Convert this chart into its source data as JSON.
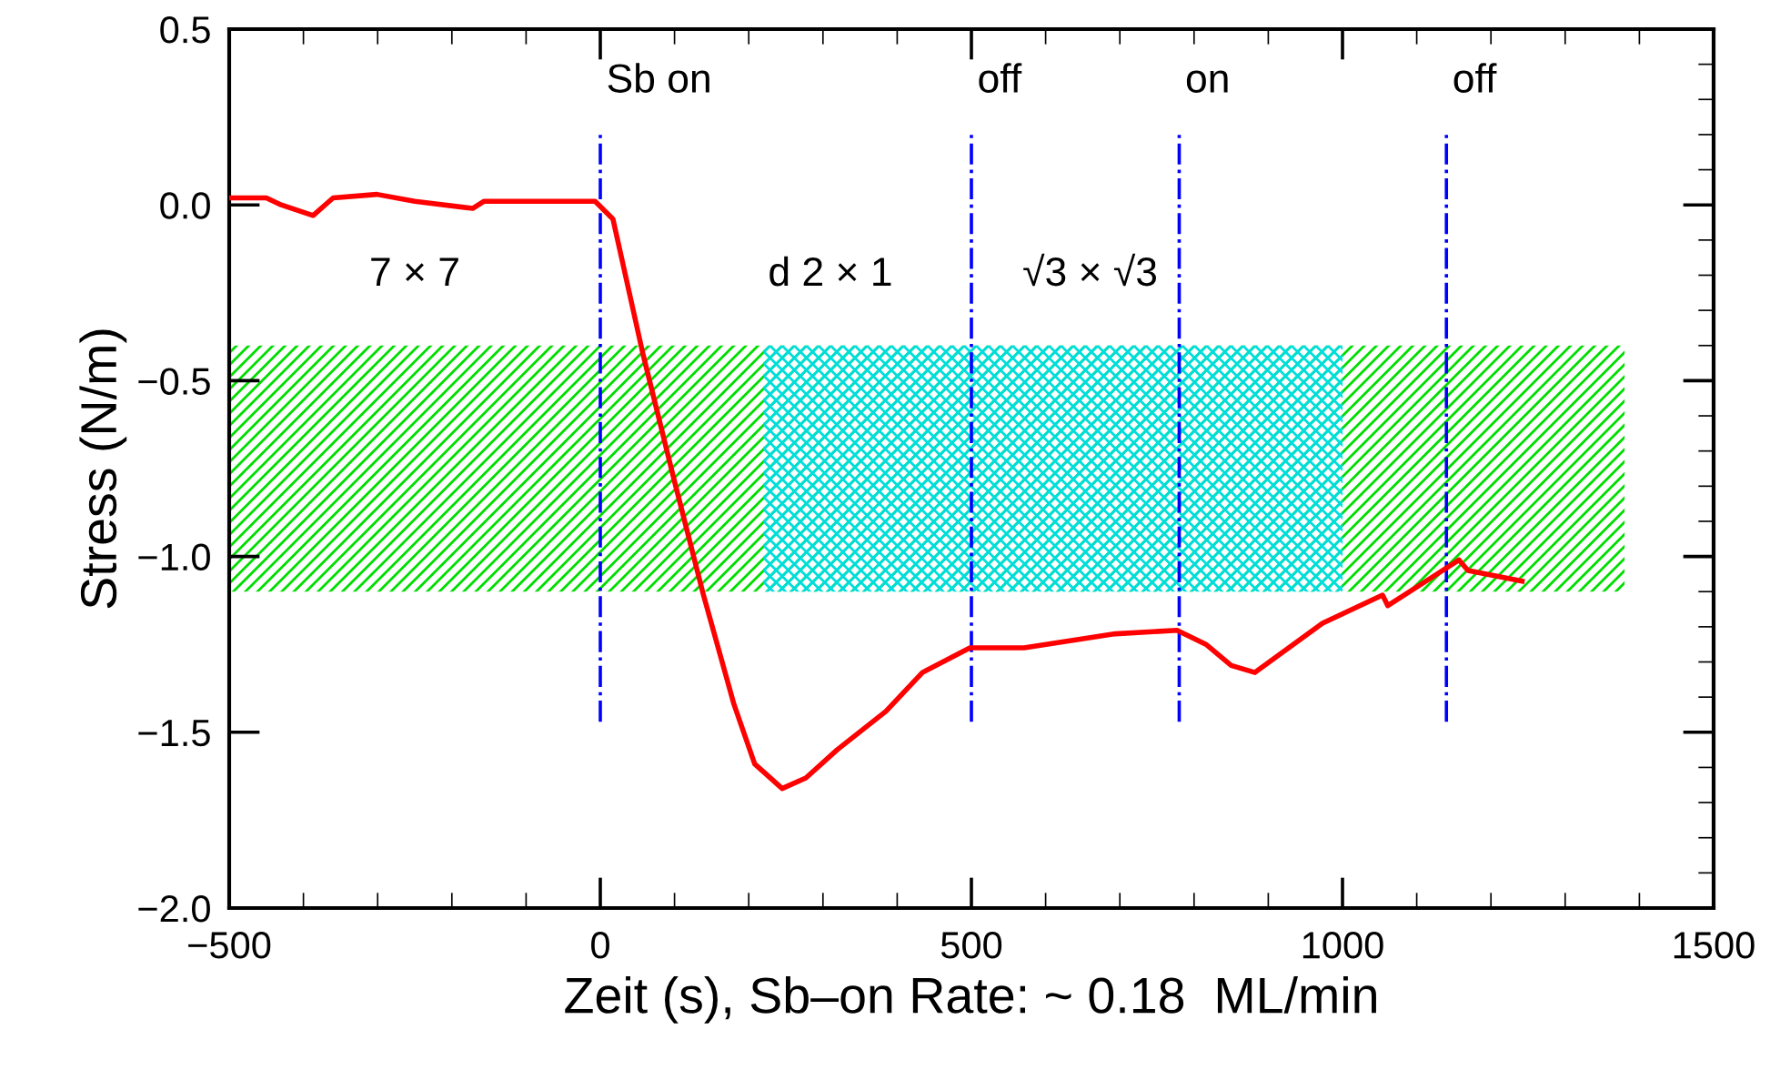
{
  "chart_data": {
    "type": "line",
    "xlabel": "Zeit (s), Sb–on Rate: ~ 0.18  ML/min",
    "ylabel": "Stress (N/m)",
    "xlim": [
      -500,
      1500
    ],
    "xticks": [
      {
        "value": -500,
        "label": "−500"
      },
      0,
      500,
      1000,
      1500
    ],
    "ylim": [
      -2.0,
      0.5
    ],
    "yticks": [
      {
        "value": -2.0,
        "label": "−2.0"
      },
      {
        "value": -1.5,
        "label": "−1.5"
      },
      {
        "value": -1.0,
        "label": "−1.0"
      },
      {
        "value": -0.5,
        "label": "−0.5"
      },
      {
        "value": 0.0,
        "label": "0.0"
      },
      {
        "value": 0.5,
        "label": "0.5"
      }
    ],
    "grid": false,
    "legend": false,
    "line_style": "solid",
    "marker": "none",
    "series": [
      {
        "color": "#ff0000",
        "x": [
          -497,
          -450,
          -430,
          -387,
          -360,
          -301,
          -250,
          -172,
          -157,
          -100,
          -7,
          17,
          57,
          98,
          139,
          180,
          208,
          245,
          277,
          319,
          385,
          434,
          498,
          571,
          694,
          777,
          816,
          850,
          882,
          973,
          1054,
          1061,
          1120,
          1157,
          1169,
          1242
        ],
        "values": [
          0.02,
          0.02,
          0.0,
          -0.03,
          0.02,
          0.03,
          0.01,
          -0.01,
          0.01,
          0.01,
          0.01,
          -0.04,
          -0.42,
          -0.77,
          -1.11,
          -1.42,
          -1.59,
          -1.66,
          -1.63,
          -1.55,
          -1.44,
          -1.33,
          -1.26,
          -1.26,
          -1.22,
          -1.21,
          -1.25,
          -1.31,
          -1.33,
          -1.19,
          -1.11,
          -1.14,
          -1.06,
          -1.01,
          -1.04,
          -1.07
        ]
      }
    ],
    "ref_lines": [
      {
        "axis": "x",
        "value": 0,
        "label": "Sb on",
        "color": "#0000ff",
        "line_style": "dashdot"
      },
      {
        "axis": "x",
        "value": 500,
        "label": "off",
        "color": "#0000ff",
        "line_style": "dashdot"
      },
      {
        "axis": "x",
        "value": 780,
        "label": "on",
        "color": "#0000ff",
        "line_style": "dashdot"
      },
      {
        "axis": "x",
        "value": 1140,
        "label": "off",
        "color": "#0000ff",
        "line_style": "dashdot"
      }
    ],
    "bands": [
      {
        "axis": "x",
        "from": -500,
        "to": 1380,
        "label": null,
        "color": "#00dd00"
      },
      {
        "axis": "x",
        "from": 220,
        "to": 1000,
        "label": null,
        "color": "#00dddd"
      }
    ],
    "annotations": [
      "7 × 7",
      "d 2 × 1",
      "√3 × √3"
    ]
  }
}
